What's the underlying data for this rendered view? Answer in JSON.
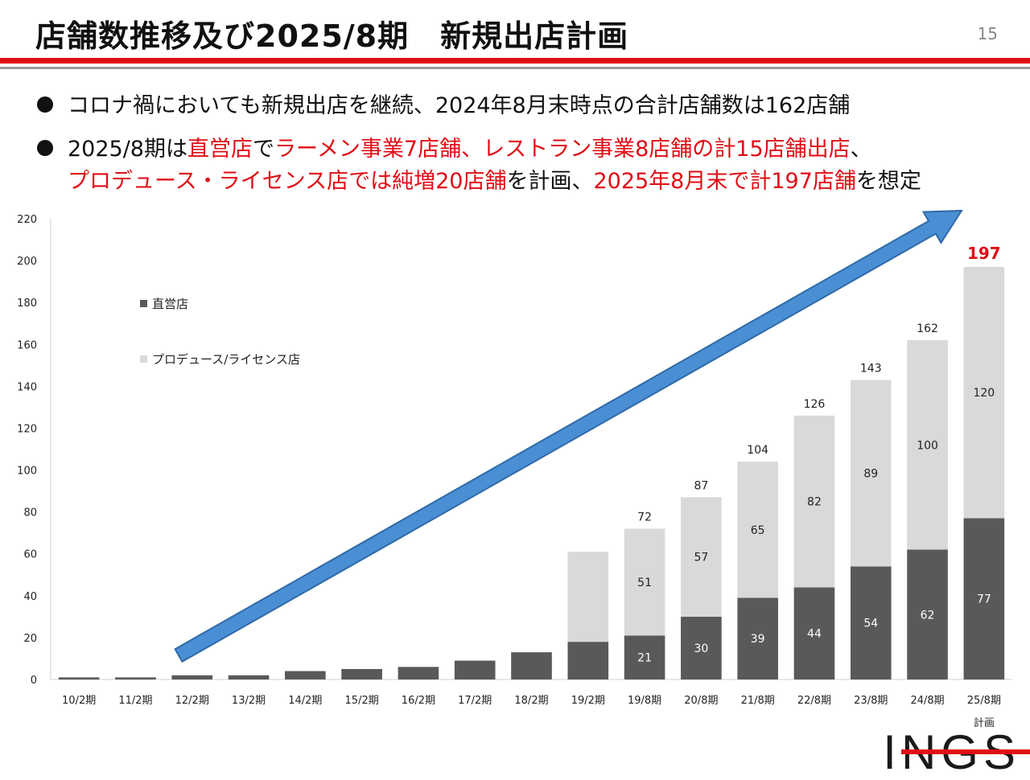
{
  "header": {
    "title": "店舗数推移及び2025/8期　新規出店計画",
    "page_number": "15"
  },
  "bullets": {
    "b1": "コロナ禍においても新規出店を継続、2024年8月末時点の合計店舗数は162店舗",
    "b2_l1_a": "2025/8期は",
    "b2_l1_b": "直営店",
    "b2_l1_c": "で",
    "b2_l1_d": "ラーメン事業7店舗、レストラン事業8店舗の計15店舗出店",
    "b2_l1_e": "、",
    "b2_l2_a": "プロデュース・ライセンス店では純増20店舗",
    "b2_l2_b": "を計画、",
    "b2_l2_c": "2025年8月末で計197店舗",
    "b2_l2_d": "を想定"
  },
  "logo": {
    "text": "INGS"
  },
  "colors": {
    "accent_red": "#e00d15",
    "direct": "#595959",
    "license": "#d9d9d9",
    "arrow": "#4a8fd4"
  },
  "chart_data": {
    "type": "bar",
    "stacked": true,
    "categories": [
      "10/2期",
      "11/2期",
      "12/2期",
      "13/2期",
      "14/2期",
      "15/2期",
      "16/2期",
      "17/2期",
      "18/2期",
      "19/2期",
      "19/8期",
      "20/8期",
      "21/8期",
      "22/8期",
      "23/8期",
      "24/8期",
      "25/8期"
    ],
    "category_sublabels": [
      "",
      "",
      "",
      "",
      "",
      "",
      "",
      "",
      "",
      "",
      "",
      "",
      "",
      "",
      "",
      "",
      "計画"
    ],
    "series": [
      {
        "name": "直営店",
        "color": "#595959",
        "values": [
          1,
          1,
          2,
          2,
          4,
          5,
          6,
          9,
          13,
          18,
          21,
          30,
          39,
          44,
          54,
          62,
          77
        ],
        "labels": [
          "",
          "",
          "",
          "",
          "",
          "",
          "",
          "",
          "",
          "",
          "21",
          "30",
          "39",
          "44",
          "54",
          "62",
          "77"
        ]
      },
      {
        "name": "プロデュース/ライセンス店",
        "color": "#d9d9d9",
        "values": [
          0,
          0,
          0,
          0,
          0,
          0,
          0,
          0,
          0,
          43,
          51,
          57,
          65,
          82,
          89,
          100,
          120
        ],
        "labels": [
          "",
          "",
          "",
          "",
          "",
          "",
          "",
          "",
          "",
          "",
          "51",
          "57",
          "65",
          "82",
          "89",
          "100",
          "120"
        ]
      }
    ],
    "totals": [
      "",
      "",
      "",
      "",
      "",
      "",
      "",
      "",
      "",
      "",
      "72",
      "87",
      "104",
      "126",
      "143",
      "162",
      "197"
    ],
    "highlight_total_index": 16,
    "ylim": [
      0,
      220
    ],
    "yticks": [
      0,
      20,
      40,
      60,
      80,
      100,
      120,
      140,
      160,
      180,
      200,
      220
    ],
    "legend_placement": "upper-left inside",
    "annotation": "arrow rising from 12/2期 to 25/8期"
  }
}
